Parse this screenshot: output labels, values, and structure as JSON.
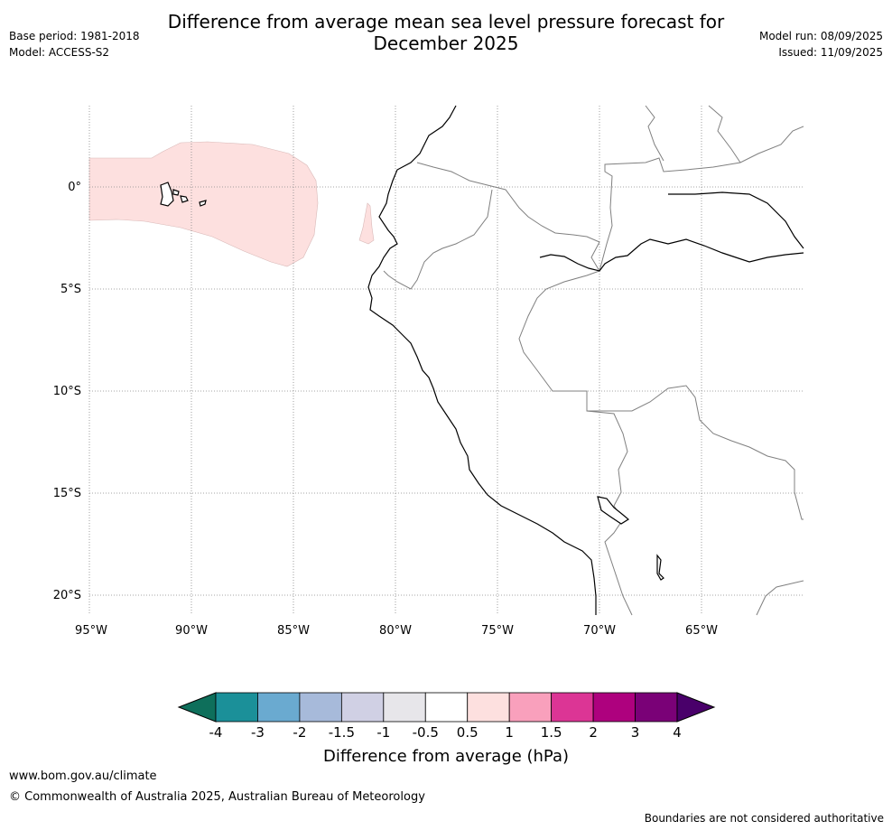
{
  "header": {
    "title_line1": "Difference from average mean sea level pressure forecast for",
    "title_line2": "December 2025",
    "base_period": "Base period: 1981-2018",
    "model": "Model: ACCESS-S2",
    "model_run": "Model run: 08/09/2025",
    "issued": "Issued: 11/09/2025"
  },
  "map": {
    "lat_labels": [
      "0°",
      "5°S",
      "10°S",
      "15°S",
      "20°S"
    ],
    "lon_labels": [
      "95°W",
      "90°W",
      "85°W",
      "80°W",
      "75°W",
      "70°W",
      "65°W"
    ],
    "anomaly_fill_color": "#fde0df",
    "coast_color": "#000000",
    "border_color": "#808080"
  },
  "legend": {
    "title": "Difference from average (hPa)",
    "ticks": [
      "-4",
      "-3",
      "-2",
      "-1.5",
      "-1",
      "-0.5",
      "0.5",
      "1",
      "1.5",
      "2",
      "3",
      "4"
    ],
    "colors": [
      "#0e6f5b",
      "#1b9099",
      "#6aaad0",
      "#a7bada",
      "#d0d0e4",
      "#e7e6ea",
      "#ffffff",
      "#fde0df",
      "#f9a0bc",
      "#dc3595",
      "#ae017e",
      "#7a0177",
      "#49006a"
    ]
  },
  "footer": {
    "website": "www.bom.gov.au/climate",
    "copyright": "© Commonwealth of Australia 2025, Australian Bureau of Meteorology",
    "disclaimer": "Boundaries are not considered authoritative"
  }
}
